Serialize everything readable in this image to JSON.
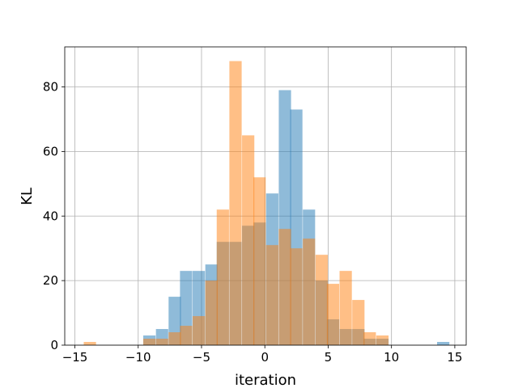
{
  "chart_data": {
    "type": "bar",
    "title": "",
    "xlabel": "iteration",
    "ylabel": "KL",
    "xlim": [
      -15.8,
      15.9
    ],
    "ylim": [
      0,
      92.4
    ],
    "xticks": [
      -15,
      -10,
      -5,
      0,
      5,
      10,
      15
    ],
    "yticks": [
      0,
      20,
      40,
      60,
      80
    ],
    "grid": true,
    "bin_width": 0.97,
    "series": [
      {
        "color": "#1f77b4",
        "alpha": 0.5,
        "bins": [
          {
            "x": -9.6,
            "v": 3
          },
          {
            "x": -8.6,
            "v": 5
          },
          {
            "x": -7.6,
            "v": 15
          },
          {
            "x": -6.7,
            "v": 23
          },
          {
            "x": -5.7,
            "v": 23
          },
          {
            "x": -4.7,
            "v": 25
          },
          {
            "x": -3.8,
            "v": 32
          },
          {
            "x": -2.8,
            "v": 32
          },
          {
            "x": -1.8,
            "v": 37
          },
          {
            "x": -0.9,
            "v": 38
          },
          {
            "x": 0.1,
            "v": 47
          },
          {
            "x": 1.1,
            "v": 79
          },
          {
            "x": 2.0,
            "v": 73
          },
          {
            "x": 3.0,
            "v": 42
          },
          {
            "x": 4.0,
            "v": 20
          },
          {
            "x": 4.9,
            "v": 8
          },
          {
            "x": 5.9,
            "v": 5
          },
          {
            "x": 6.9,
            "v": 5
          },
          {
            "x": 7.8,
            "v": 2
          },
          {
            "x": 8.8,
            "v": 2
          },
          {
            "x": 13.6,
            "v": 1
          }
        ]
      },
      {
        "color": "#ff7f0e",
        "alpha": 0.5,
        "bins": [
          {
            "x": -14.3,
            "v": 1
          },
          {
            "x": -9.6,
            "v": 2
          },
          {
            "x": -8.6,
            "v": 2
          },
          {
            "x": -7.6,
            "v": 4
          },
          {
            "x": -6.7,
            "v": 6
          },
          {
            "x": -5.7,
            "v": 9
          },
          {
            "x": -4.7,
            "v": 20
          },
          {
            "x": -3.8,
            "v": 42
          },
          {
            "x": -2.8,
            "v": 88
          },
          {
            "x": -1.8,
            "v": 65
          },
          {
            "x": -0.9,
            "v": 52
          },
          {
            "x": 0.1,
            "v": 31
          },
          {
            "x": 1.1,
            "v": 36
          },
          {
            "x": 2.0,
            "v": 30
          },
          {
            "x": 3.0,
            "v": 33
          },
          {
            "x": 4.0,
            "v": 28
          },
          {
            "x": 4.9,
            "v": 19
          },
          {
            "x": 5.9,
            "v": 23
          },
          {
            "x": 6.9,
            "v": 14
          },
          {
            "x": 7.8,
            "v": 4
          },
          {
            "x": 8.8,
            "v": 3
          }
        ]
      }
    ]
  }
}
